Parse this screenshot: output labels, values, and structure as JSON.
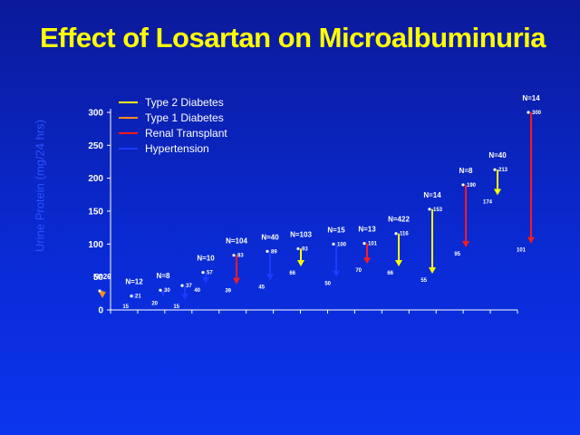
{
  "chart_data": {
    "type": "scatter",
    "title": "Effect of Losartan on Microalbuminuria",
    "ylabel": "Urine Protein (mg/24 hrs)",
    "ylim": [
      0,
      300
    ],
    "yticks": [
      0,
      50,
      100,
      150,
      200,
      250,
      300
    ],
    "legend_placement": "top-left",
    "series": [
      {
        "name": "Type 2 Diabetes",
        "color": "#ffff00"
      },
      {
        "name": "Type 1 Diabetes",
        "color": "#ff8c1a"
      },
      {
        "name": "Renal Transplant",
        "color": "#ff1a1a"
      },
      {
        "name": "Hypertension",
        "color": "#1a3cff"
      }
    ],
    "studies": [
      {
        "n_label": "N=29",
        "before": 29,
        "after": 18,
        "before_label": "",
        "after_label": "",
        "type": "Type 1 Diabetes"
      },
      {
        "n_label": "N=12",
        "before": 21,
        "after": 15,
        "before_label": "21",
        "after_label": "15",
        "type": "Hypertension"
      },
      {
        "n_label": "N=8",
        "before": 30,
        "after": 20,
        "before_label": "30",
        "after_label": "20",
        "type": "Hypertension"
      },
      {
        "n_label": "",
        "before": 37,
        "after": 15,
        "before_label": "37",
        "after_label": "15",
        "type": "Hypertension"
      },
      {
        "n_label": "N=10",
        "before": 57,
        "after": 40,
        "before_label": "57",
        "after_label": "40",
        "type": "Hypertension"
      },
      {
        "n_label": "N=104",
        "before": 83,
        "after": 39,
        "before_label": "83",
        "after_label": "39",
        "type": "Renal Transplant"
      },
      {
        "n_label": "N=40",
        "before": 89,
        "after": 45,
        "before_label": "89",
        "after_label": "45",
        "type": "Hypertension"
      },
      {
        "n_label": "N=103",
        "before": 93,
        "after": 66,
        "before_label": "93",
        "after_label": "66",
        "type": "Type 2 Diabetes"
      },
      {
        "n_label": "N=15",
        "before": 100,
        "after": 50,
        "before_label": "100",
        "after_label": "50",
        "type": "Hypertension"
      },
      {
        "n_label": "N=13",
        "before": 101,
        "after": 70,
        "before_label": "101",
        "after_label": "70",
        "type": "Renal Transplant"
      },
      {
        "n_label": "N=422",
        "before": 116,
        "after": 66,
        "before_label": "116",
        "after_label": "66",
        "type": "Type 2 Diabetes"
      },
      {
        "n_label": "N=14",
        "before": 153,
        "after": 55,
        "before_label": "153",
        "after_label": "55",
        "type": "Type 2 Diabetes"
      },
      {
        "n_label": "N=8",
        "before": 190,
        "after": 95,
        "before_label": "190",
        "after_label": "95",
        "type": "Renal Transplant"
      },
      {
        "n_label": "N=40",
        "before": 213,
        "after": 174,
        "before_label": "213",
        "after_label": "174",
        "type": "Type 2 Diabetes"
      },
      {
        "n_label": "N=14",
        "before": 300,
        "after": 101,
        "before_label": "300",
        "after_label": "101",
        "type": "Renal Transplant"
      }
    ]
  }
}
